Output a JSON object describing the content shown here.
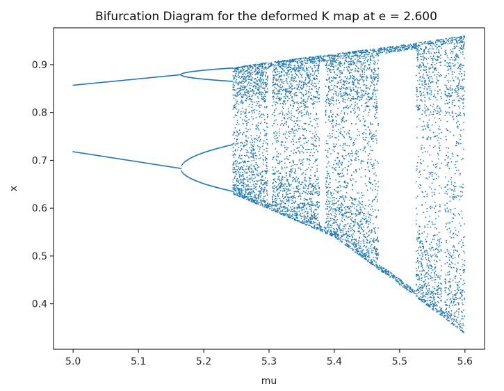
{
  "chart_data": {
    "type": "scatter",
    "title": "Bifurcation Diagram for the deformed K map at e = 2.600",
    "xlabel": "mu",
    "ylabel": "x",
    "xlim": [
      4.97,
      5.63
    ],
    "ylim": [
      0.305,
      0.977
    ],
    "x_ticks": [
      5.0,
      5.1,
      5.2,
      5.3,
      5.4,
      5.5,
      5.6
    ],
    "x_tick_labels": [
      "5.0",
      "5.1",
      "5.2",
      "5.3",
      "5.4",
      "5.5",
      "5.6"
    ],
    "y_ticks": [
      0.4,
      0.5,
      0.6,
      0.7,
      0.8,
      0.9
    ],
    "y_tick_labels": [
      "0.4",
      "0.5",
      "0.6",
      "0.7",
      "0.8",
      "0.9"
    ],
    "grid": false,
    "legend": "none",
    "mu_range": [
      5.0,
      5.6
    ],
    "series": [
      {
        "marker_color": "#1f77b4",
        "stable_branches": {
          "period2_start": {
            "mu": 5.0,
            "x": [
              0.857,
              0.718
            ]
          },
          "period2_end": {
            "mu": 5.165,
            "x": [
              0.879,
              0.683
            ]
          },
          "period4_end": {
            "mu": 5.245,
            "x": [
              0.893,
              0.865,
              0.733,
              0.635
            ]
          }
        },
        "chaos_envelope": {
          "mu": [
            5.245,
            5.3,
            5.4,
            5.5,
            5.6
          ],
          "x_upper": [
            0.893,
            0.905,
            0.922,
            0.94,
            0.96
          ],
          "x_lower": [
            0.63,
            0.598,
            0.54,
            0.44,
            0.338
          ]
        },
        "periodic_windows": [
          {
            "mu": [
              5.298,
              5.305
            ]
          },
          {
            "mu": [
              5.378,
              5.386
            ]
          },
          {
            "mu": [
              5.468,
              5.525
            ]
          },
          {
            "mu": [
              5.565,
              5.569
            ]
          }
        ]
      }
    ]
  }
}
